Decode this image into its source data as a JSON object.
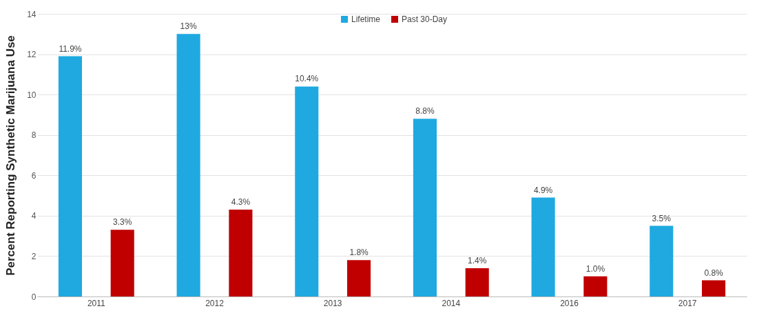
{
  "chart_data": {
    "type": "bar",
    "ylabel": "Percent Reporting Synthetic Marijuana Use",
    "categories": [
      "2011",
      "2012",
      "2013",
      "2014",
      "2016",
      "2017"
    ],
    "series": [
      {
        "name": "Lifetime",
        "color": "#1fa9e0",
        "values": [
          11.9,
          13,
          10.4,
          8.8,
          4.9,
          3.5
        ],
        "value_labels": [
          "11.9%",
          "13%",
          "10.4%",
          "8.8%",
          "4.9%",
          "3.5%"
        ]
      },
      {
        "name": "Past 30-Day",
        "color": "#c00000",
        "values": [
          3.3,
          4.3,
          1.8,
          1.4,
          1.0,
          0.8
        ],
        "value_labels": [
          "3.3%",
          "4.3%",
          "1.8%",
          "1.4%",
          "1.0%",
          "0.8%"
        ]
      }
    ],
    "ylim": [
      0,
      14
    ],
    "yticks": [
      0,
      2,
      4,
      6,
      8,
      10,
      12,
      14
    ],
    "grid": "y",
    "legend": "top"
  }
}
